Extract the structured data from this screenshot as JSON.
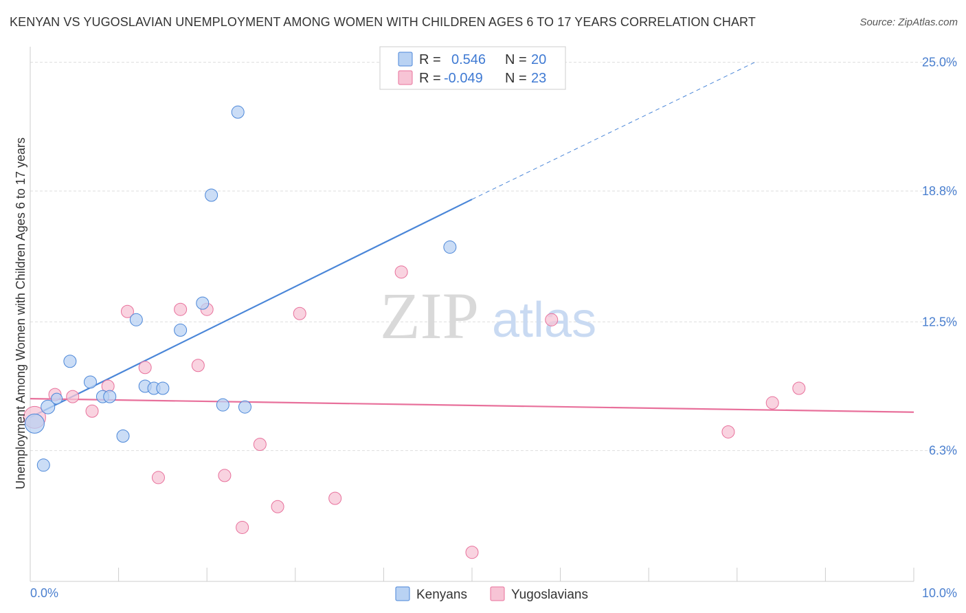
{
  "title": "KENYAN VS YUGOSLAVIAN UNEMPLOYMENT AMONG WOMEN WITH CHILDREN AGES 6 TO 17 YEARS CORRELATION CHART",
  "source": "Source: ZipAtlas.com",
  "watermark": {
    "zip": "ZIP",
    "atlas": "atlas"
  },
  "colors": {
    "kenyans": "#4a86d8",
    "kenyans_fill": "#b9d2f3",
    "yugoslavians": "#e8709b",
    "yugoslavians_fill": "#f7c4d5",
    "tick": "#4a7fcf",
    "grid": "#dddddd"
  },
  "legend": {
    "rows": [
      {
        "r_label": "R =",
        "r_value": "0.546",
        "n_label": "N =",
        "n_value": "20"
      },
      {
        "r_label": "R =",
        "r_value": "-0.049",
        "n_label": "N =",
        "n_value": "23"
      }
    ]
  },
  "chart_data": {
    "type": "scatter",
    "title": "KENYAN VS YUGOSLAVIAN UNEMPLOYMENT AMONG WOMEN WITH CHILDREN AGES 6 TO 17 YEARS CORRELATION CHART",
    "xlabel": "",
    "ylabel": "Unemployment Among Women with Children Ages 6 to 17 years",
    "xlim": [
      0,
      10
    ],
    "ylim": [
      0,
      25.75
    ],
    "x_tick_labels": [
      "0.0%",
      "10.0%"
    ],
    "y_ticks": [
      6.3,
      12.5,
      18.8,
      25.0
    ],
    "y_tick_labels": [
      "6.3%",
      "12.5%",
      "18.8%",
      "25.0%"
    ],
    "grid": true,
    "legend_position": "top-center",
    "series": [
      {
        "name": "Kenyans",
        "x": [
          0.05,
          0.2,
          0.3,
          0.45,
          0.68,
          0.82,
          0.9,
          1.05,
          1.2,
          1.3,
          1.4,
          1.5,
          1.7,
          1.95,
          2.05,
          2.18,
          2.35,
          2.43,
          4.75,
          0.15
        ],
        "y": [
          7.6,
          8.4,
          8.8,
          10.6,
          9.6,
          8.9,
          8.9,
          7.0,
          12.6,
          9.4,
          9.3,
          9.3,
          12.1,
          13.4,
          18.6,
          8.5,
          22.6,
          8.4,
          16.1,
          5.6
        ],
        "point_sizes": [
          14,
          10,
          8,
          9,
          9,
          9,
          9,
          9,
          9,
          9,
          9,
          9,
          9,
          9,
          9,
          9,
          9,
          9,
          9,
          9
        ],
        "trend": {
          "x": [
            0,
            5.0
          ],
          "y": [
            7.9,
            18.4
          ],
          "dashed_to": [
            8.2,
            25.0
          ]
        }
      },
      {
        "name": "Yugoslavians",
        "x": [
          0.05,
          0.28,
          0.48,
          0.7,
          0.88,
          1.1,
          1.3,
          1.45,
          1.7,
          1.9,
          2.0,
          2.2,
          2.4,
          2.6,
          2.8,
          3.05,
          3.45,
          4.2,
          5.0,
          5.9,
          7.9,
          8.4,
          8.7
        ],
        "y": [
          7.9,
          9.0,
          8.9,
          8.2,
          9.4,
          13.0,
          10.3,
          5.0,
          13.1,
          10.4,
          13.1,
          5.1,
          2.6,
          6.6,
          3.6,
          12.9,
          4.0,
          14.9,
          1.4,
          12.6,
          7.2,
          8.6,
          9.3
        ],
        "point_sizes": [
          16,
          9,
          9,
          9,
          9,
          9,
          9,
          9,
          9,
          9,
          9,
          9,
          9,
          9,
          9,
          9,
          9,
          9,
          9,
          9,
          9,
          9,
          9
        ],
        "trend": {
          "x": [
            0,
            10
          ],
          "y": [
            8.8,
            8.15
          ]
        }
      }
    ]
  }
}
